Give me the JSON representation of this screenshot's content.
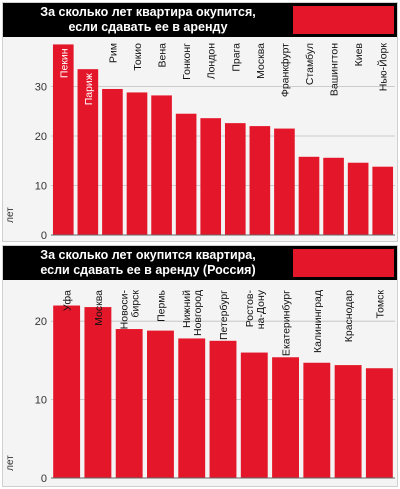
{
  "colors": {
    "bar": "#e4172a",
    "header_bg": "#000000",
    "header_text": "#ffffff",
    "panel_bg": "#f4f4f4",
    "grid": "#bfbfbf"
  },
  "chart_data": [
    {
      "type": "bar",
      "title_lines": [
        "За сколько лет квартира окупится,",
        "если сдавать ее в аренду"
      ],
      "ylabel": "лет",
      "ylim": [
        0,
        40
      ],
      "yticks": [
        0,
        10,
        20,
        30
      ],
      "grid": true,
      "categories": [
        "Пекин",
        "Париж",
        "Рим",
        "Токио",
        "Вена",
        "Гонконг",
        "Лондон",
        "Прага",
        "Москва",
        "Франкфурт",
        "Стамбул",
        "Вашингтон",
        "Киев",
        "Нью-Йорк"
      ],
      "values": [
        38.5,
        33.5,
        29.5,
        28.8,
        28.2,
        24.5,
        23.6,
        22.6,
        22,
        21.5,
        15.8,
        15.6,
        14.6,
        13.8
      ]
    },
    {
      "type": "bar",
      "title_lines": [
        "За сколько лет окупится квартира,",
        "если сдавать ее в аренду (Россия)"
      ],
      "ylabel": "лет",
      "ylim": [
        0,
        25
      ],
      "yticks": [
        0,
        10,
        20
      ],
      "grid": true,
      "categories": [
        "Уфа",
        "Москва",
        "Новоси-\nбирск",
        "Пермь",
        "Нижний\nНовгород",
        "Петербург",
        "Ростов-\nна-Дону",
        "Екатеринбург",
        "Калининград",
        "Краснодар",
        "Томск"
      ],
      "values": [
        22,
        21.8,
        19,
        18.8,
        17.8,
        17.5,
        16,
        15.4,
        14.7,
        14.4,
        14
      ]
    }
  ]
}
